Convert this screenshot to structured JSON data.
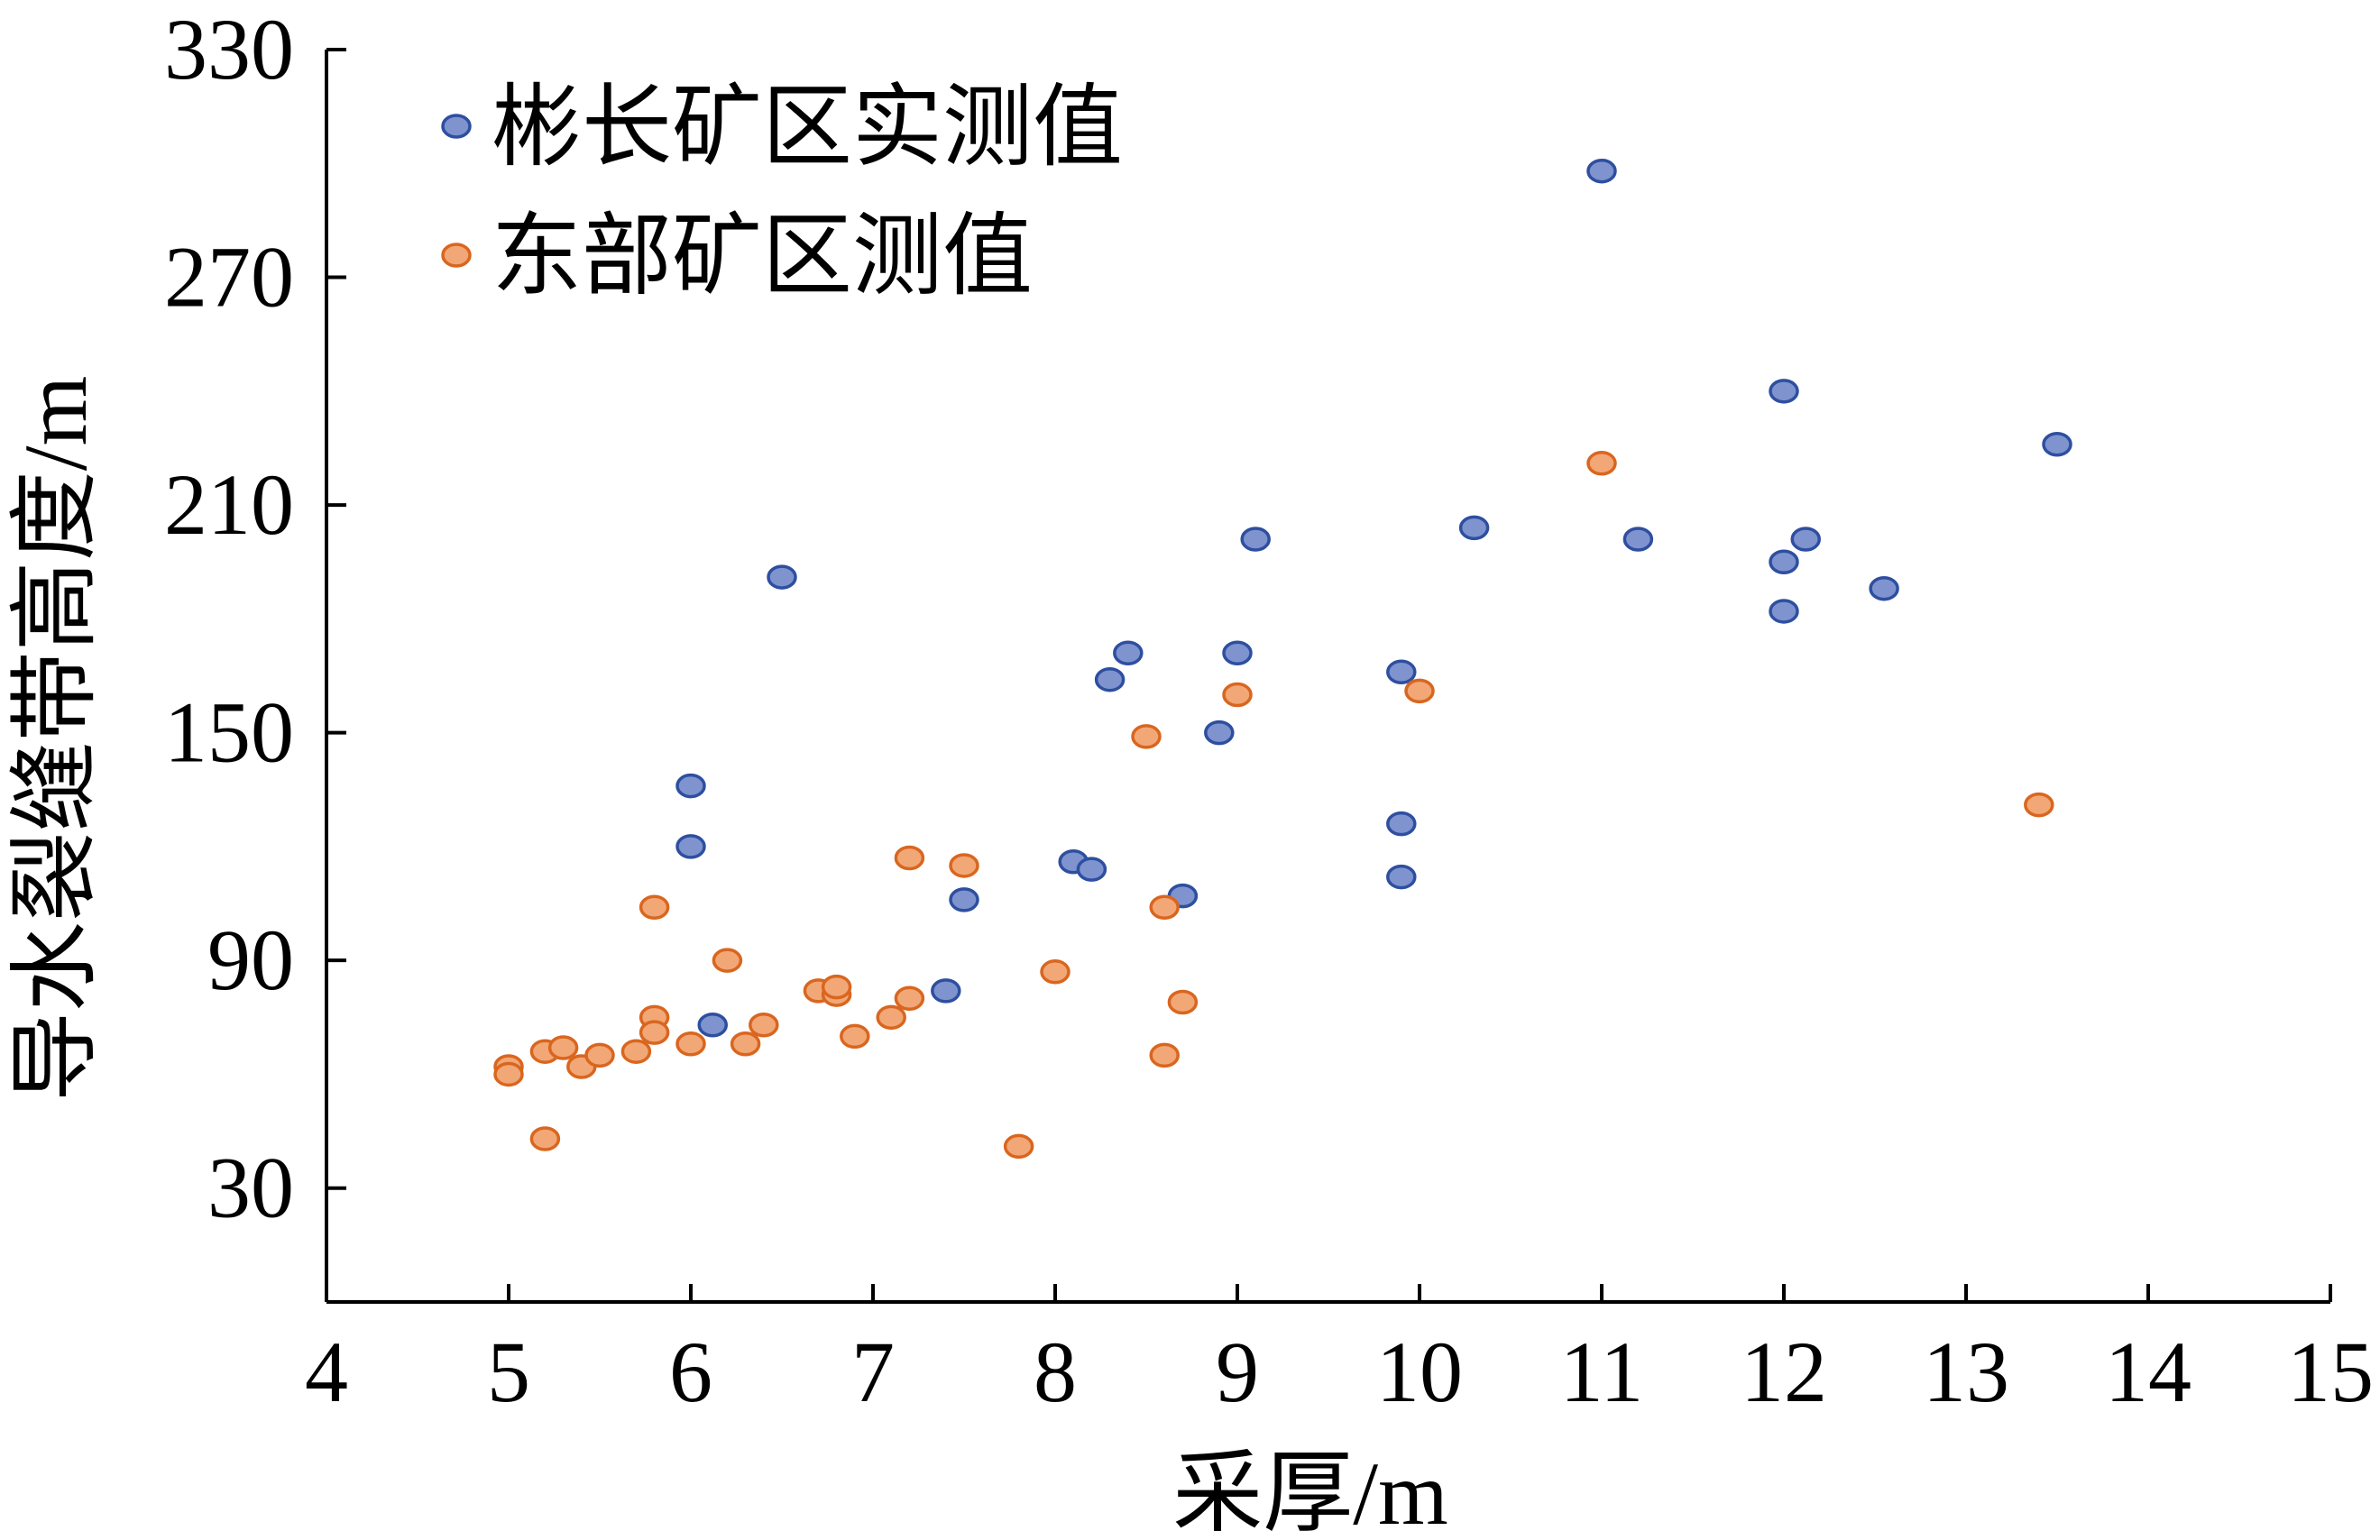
{
  "chart_data": {
    "type": "scatter",
    "xlabel": "采厚/m",
    "ylabel": "导水裂缝带高度/m",
    "xlim": [
      4,
      15
    ],
    "ylim": [
      0,
      330
    ],
    "xticks": [
      4,
      5,
      6,
      7,
      8,
      9,
      10,
      11,
      12,
      13,
      14,
      15
    ],
    "yticks": [
      30,
      90,
      150,
      210,
      270,
      330
    ],
    "legend_position": "top-left",
    "grid": false,
    "series": [
      {
        "name": "彬长矿区实测值",
        "color": "#7f93cf",
        "edge_color": "#2e4fa0",
        "points": [
          [
            6.0,
            136
          ],
          [
            6.0,
            120
          ],
          [
            6.12,
            73
          ],
          [
            6.5,
            191
          ],
          [
            7.4,
            82
          ],
          [
            7.5,
            106
          ],
          [
            8.1,
            116
          ],
          [
            8.2,
            114
          ],
          [
            8.3,
            164
          ],
          [
            8.4,
            171
          ],
          [
            8.7,
            107
          ],
          [
            8.9,
            150
          ],
          [
            9.0,
            171
          ],
          [
            9.1,
            201
          ],
          [
            9.9,
            166
          ],
          [
            9.9,
            126
          ],
          [
            9.9,
            112
          ],
          [
            10.3,
            204
          ],
          [
            11.0,
            298
          ],
          [
            11.2,
            201
          ],
          [
            12.0,
            240
          ],
          [
            12.0,
            195
          ],
          [
            12.0,
            182
          ],
          [
            12.12,
            201
          ],
          [
            12.55,
            188
          ],
          [
            13.5,
            226
          ]
        ]
      },
      {
        "name": "东部矿区测值",
        "color": "#f2a777",
        "edge_color": "#d9661f",
        "points": [
          [
            5.0,
            62
          ],
          [
            5.0,
            60
          ],
          [
            5.2,
            66
          ],
          [
            5.2,
            43
          ],
          [
            5.3,
            67
          ],
          [
            5.4,
            62
          ],
          [
            5.5,
            65
          ],
          [
            5.7,
            66
          ],
          [
            5.8,
            75
          ],
          [
            5.8,
            71
          ],
          [
            5.8,
            104
          ],
          [
            6.0,
            68
          ],
          [
            6.2,
            90
          ],
          [
            6.3,
            68
          ],
          [
            6.4,
            73
          ],
          [
            6.7,
            82
          ],
          [
            6.8,
            81
          ],
          [
            6.8,
            83
          ],
          [
            6.9,
            70
          ],
          [
            7.1,
            75
          ],
          [
            7.2,
            80
          ],
          [
            7.2,
            117
          ],
          [
            7.5,
            115
          ],
          [
            7.8,
            41
          ],
          [
            8.0,
            87
          ],
          [
            8.5,
            149
          ],
          [
            8.6,
            65
          ],
          [
            8.6,
            104
          ],
          [
            8.7,
            79
          ],
          [
            9.0,
            160
          ],
          [
            10.0,
            161
          ],
          [
            11.0,
            221
          ],
          [
            13.4,
            131
          ]
        ]
      }
    ]
  }
}
